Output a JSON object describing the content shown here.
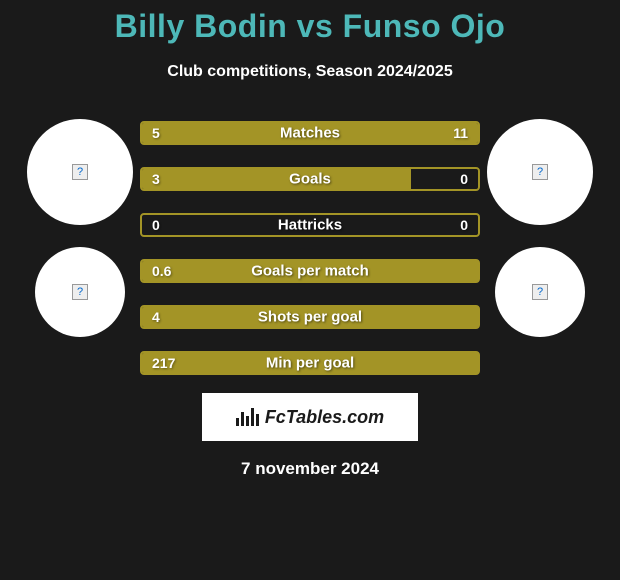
{
  "title": "Billy Bodin vs Funso Ojo",
  "title_color": "#4db8b8",
  "subtitle": "Club competitions, Season 2024/2025",
  "background_color": "#1a1a1a",
  "bar_color": "#a39426",
  "bar_border_color": "#a39426",
  "text_color": "#ffffff",
  "circle_color": "#ffffff",
  "stats": [
    {
      "label": "Matches",
      "left_val": "5",
      "right_val": "11",
      "left_pct": 31,
      "right_pct": 69
    },
    {
      "label": "Goals",
      "left_val": "3",
      "right_val": "0",
      "left_pct": 80,
      "right_pct": 0
    },
    {
      "label": "Hattricks",
      "left_val": "0",
      "right_val": "0",
      "left_pct": 0,
      "right_pct": 0
    },
    {
      "label": "Goals per match",
      "left_val": "0.6",
      "right_val": "",
      "left_pct": 100,
      "right_pct": 0
    },
    {
      "label": "Shots per goal",
      "left_val": "4",
      "right_val": "",
      "left_pct": 100,
      "right_pct": 0
    },
    {
      "label": "Min per goal",
      "left_val": "217",
      "right_val": "",
      "left_pct": 100,
      "right_pct": 0
    }
  ],
  "brand": "FcTables.com",
  "date": "7 november 2024",
  "title_fontsize": 32,
  "subtitle_fontsize": 16,
  "stat_label_fontsize": 15,
  "stat_value_fontsize": 14
}
